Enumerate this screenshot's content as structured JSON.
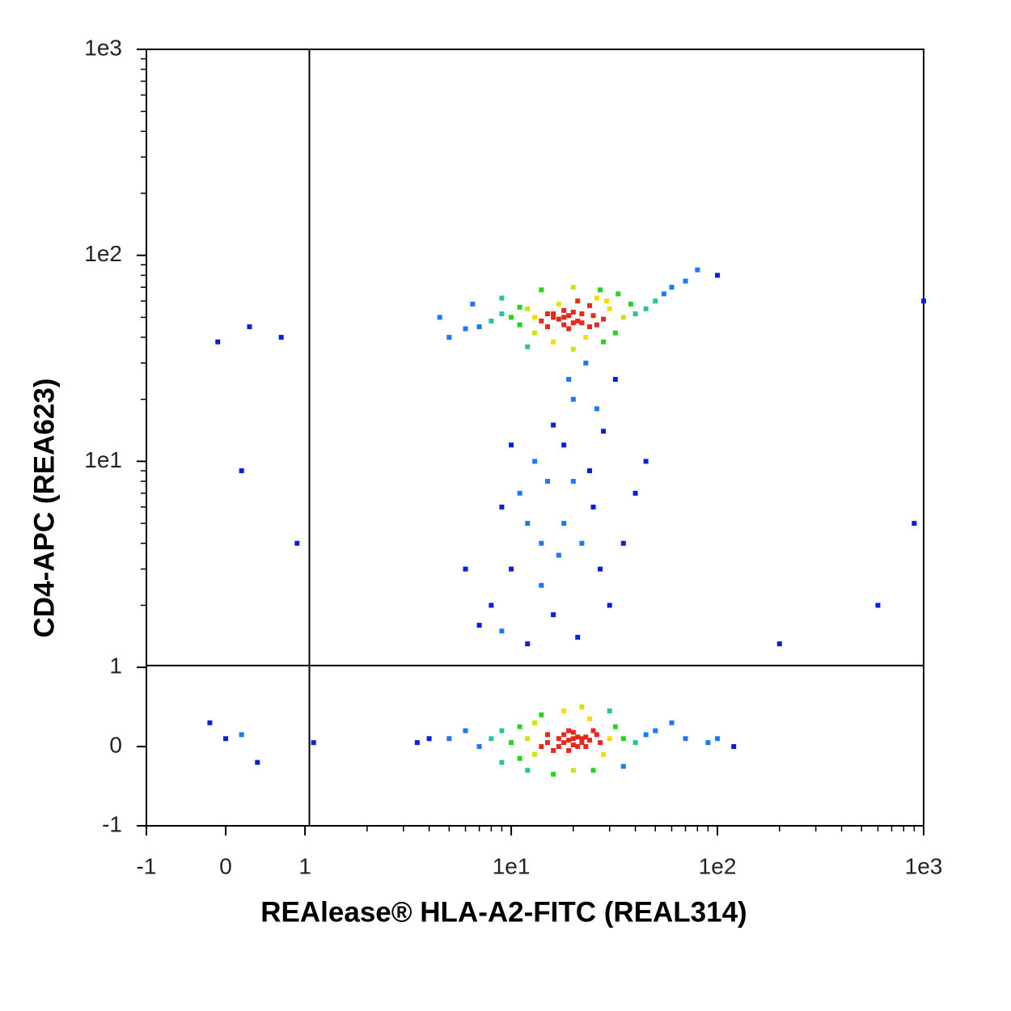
{
  "chart_data": {
    "type": "scatter",
    "x_label": "REAlease® HLA-A2-FITC (REAL314)",
    "y_label": "CD4-APC (REA623)",
    "scale": "biexponential",
    "xlim": [
      -1,
      1000
    ],
    "ylim": [
      -1,
      1000
    ],
    "xticks": [
      -1,
      0,
      1,
      {
        "value": 10,
        "label": "1e1"
      },
      {
        "value": 100,
        "label": "1e2"
      },
      {
        "value": 1000,
        "label": "1e3"
      }
    ],
    "yticks": [
      -1,
      0,
      1,
      {
        "value": 10,
        "label": "1e1"
      },
      {
        "value": 100,
        "label": "1e2"
      },
      {
        "value": 1000,
        "label": "1e3"
      }
    ],
    "xminorticks": [
      2,
      3,
      4,
      5,
      6,
      7,
      8,
      9,
      20,
      30,
      40,
      50,
      60,
      70,
      80,
      90,
      200,
      300,
      400,
      500,
      600,
      700,
      800,
      900
    ],
    "yminorticks": [
      2,
      3,
      4,
      5,
      6,
      7,
      8,
      9,
      20,
      30,
      40,
      50,
      60,
      70,
      80,
      90,
      200,
      300,
      400,
      500,
      600,
      700,
      800,
      900
    ],
    "quadrant_x": 1.05,
    "quadrant_y": 1.02,
    "x": [
      10,
      12,
      14,
      16,
      18,
      20,
      22,
      25,
      28,
      15,
      17,
      19,
      21,
      13,
      24,
      30,
      11,
      9,
      8,
      7,
      35,
      40,
      6,
      26,
      23,
      16,
      12,
      20,
      28,
      32,
      38,
      45,
      50,
      55,
      70,
      5,
      4.5,
      6.5,
      9,
      14,
      20,
      27,
      33,
      18,
      19,
      17,
      21,
      16,
      18,
      20,
      15,
      22,
      24,
      13,
      11,
      26,
      29,
      100,
      60,
      80,
      20,
      18,
      22,
      19,
      21,
      17,
      23,
      16,
      25,
      15,
      14,
      27,
      30,
      12,
      10,
      13,
      24,
      28,
      11,
      9,
      8,
      7,
      32,
      35,
      40,
      45,
      6,
      5,
      50,
      60,
      70,
      90,
      20,
      16,
      25,
      18,
      22,
      14,
      30,
      12,
      35,
      9,
      4,
      3.5,
      100,
      120,
      20,
      19,
      21,
      18,
      20,
      22,
      17,
      19,
      23,
      15,
      24,
      26,
      13,
      11,
      8,
      10,
      12,
      15,
      18,
      20,
      14,
      22,
      25,
      16,
      9,
      11,
      13,
      17,
      19,
      24,
      28,
      30,
      7,
      6,
      21,
      26,
      35,
      40,
      45,
      12,
      16,
      10,
      23,
      18,
      14,
      20,
      27,
      32,
      9,
      -0.2,
      0,
      0.2,
      0.4,
      0.7,
      0.3,
      -0.1,
      0.9,
      0.2,
      1.1,
      200,
      600,
      900,
      1000
    ],
    "y": [
      50,
      55,
      48,
      52,
      50,
      53,
      47,
      51,
      49,
      45,
      58,
      44,
      60,
      42,
      57,
      55,
      46,
      52,
      48,
      45,
      50,
      52,
      44,
      62,
      40,
      38,
      36,
      35,
      38,
      42,
      58,
      55,
      60,
      65,
      75,
      40,
      50,
      58,
      62,
      68,
      70,
      68,
      65,
      46,
      51,
      49,
      48,
      50,
      54,
      47,
      52,
      52,
      45,
      50,
      56,
      46,
      60,
      80,
      70,
      85,
      0.1,
      0.15,
      0.05,
      0.2,
      0,
      0.1,
      0.12,
      -0.05,
      0.2,
      0.15,
      0,
      0.05,
      0.1,
      0.1,
      0.05,
      0.3,
      0.35,
      -0.1,
      -0.15,
      0.2,
      0.1,
      0,
      0.25,
      0.1,
      0.05,
      0.15,
      0.2,
      0.1,
      0.2,
      0.3,
      0.1,
      0.05,
      -0.3,
      -0.35,
      -0.3,
      0.45,
      0.5,
      0.4,
      0.45,
      -0.3,
      -0.25,
      -0.2,
      0.1,
      0.05,
      0.1,
      0,
      0.02,
      0.08,
      0.12,
      0.05,
      0.18,
      0.1,
      0,
      -0.05,
      0,
      0.05,
      0.08,
      0.15,
      -0.1,
      0.25,
      2,
      3,
      5,
      8,
      12,
      20,
      2.5,
      4,
      6,
      15,
      1.5,
      7,
      10,
      3.5,
      25,
      9,
      14,
      2,
      1.6,
      3,
      1.4,
      18,
      4,
      7,
      10,
      1.3,
      1.8,
      12,
      30,
      5,
      4,
      8,
      3,
      25,
      6,
      0.3,
      0.1,
      0.15,
      -0.2,
      40,
      45,
      38,
      4,
      9,
      0.05,
      1.3,
      2,
      5,
      60
    ]
  }
}
